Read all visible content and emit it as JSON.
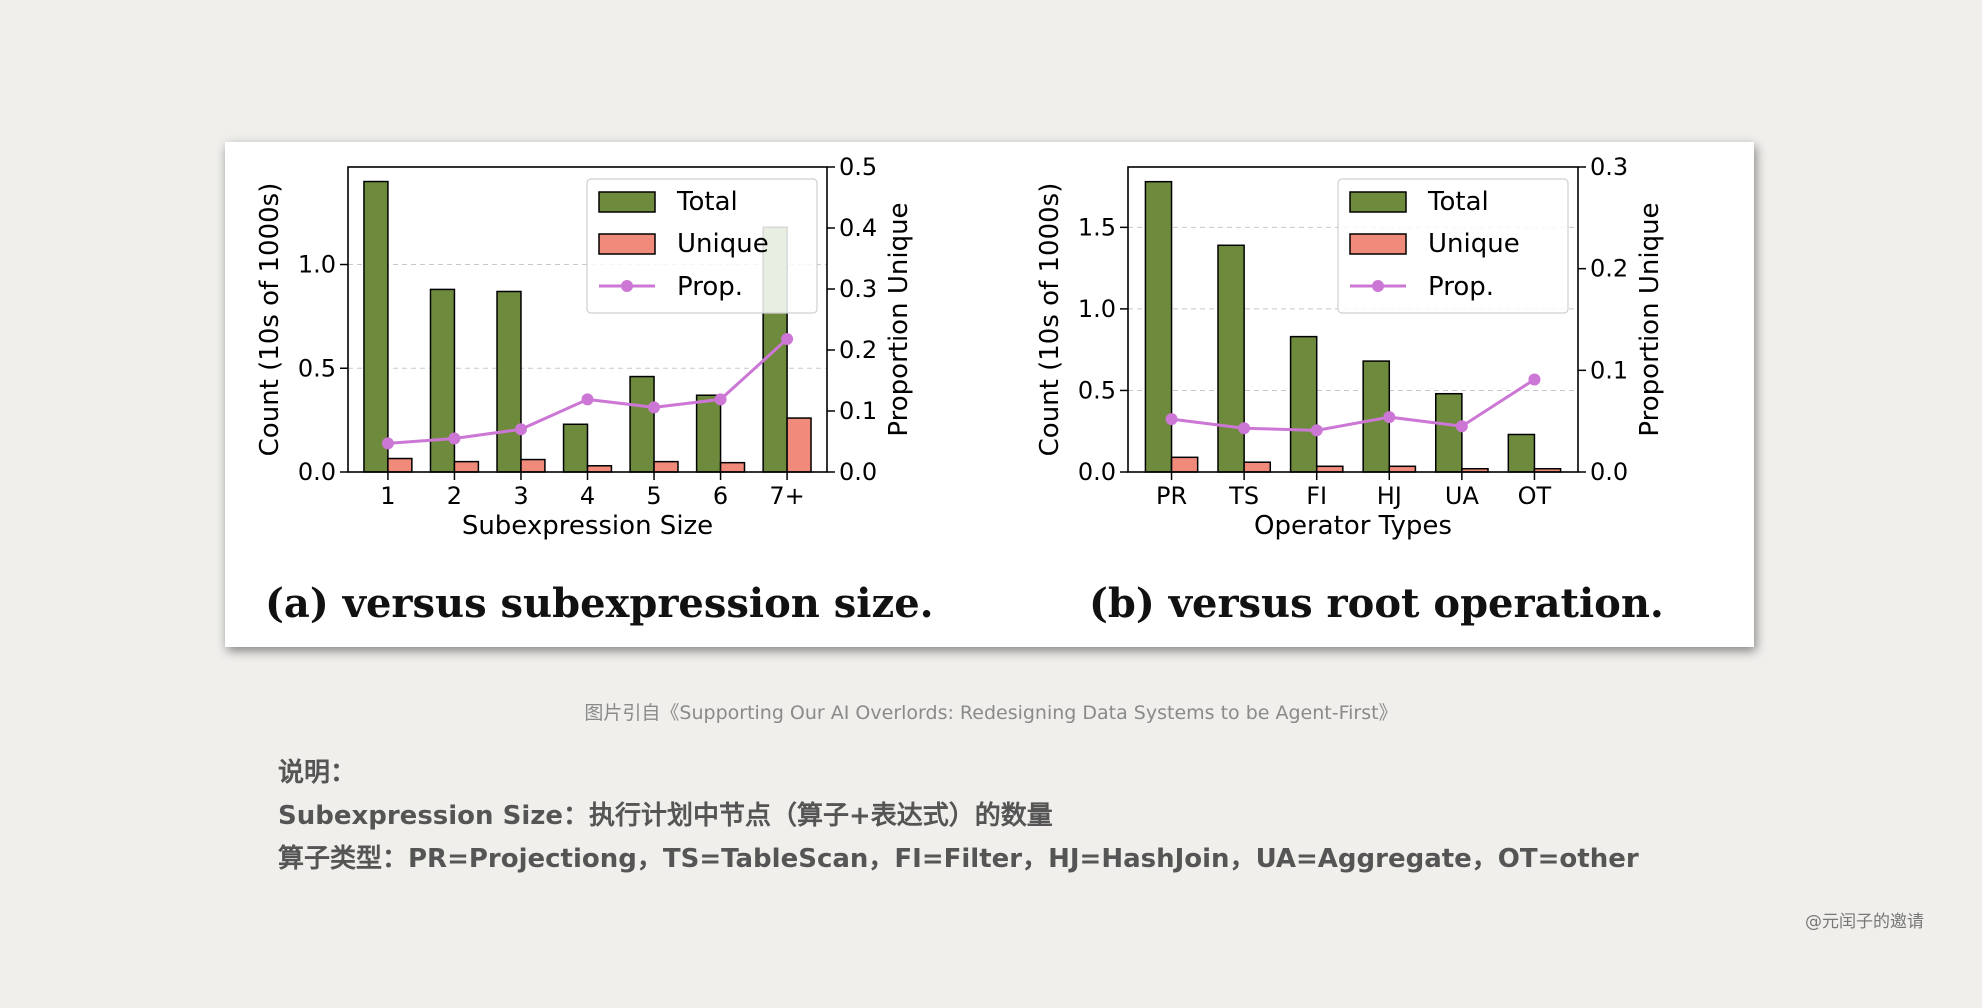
{
  "chart_data": [
    {
      "type": "bar",
      "categories": [
        "1",
        "2",
        "3",
        "4",
        "5",
        "6",
        "7+"
      ],
      "series": [
        {
          "name": "Total",
          "axis": "left",
          "values": [
            1.4,
            0.88,
            0.87,
            0.23,
            0.46,
            0.37,
            1.18
          ]
        },
        {
          "name": "Unique",
          "axis": "left",
          "values": [
            0.065,
            0.05,
            0.06,
            0.03,
            0.05,
            0.045,
            0.26
          ]
        },
        {
          "name": "Prop.",
          "axis": "right",
          "type": "line",
          "values": [
            0.047,
            0.055,
            0.07,
            0.119,
            0.106,
            0.119,
            0.218
          ]
        }
      ],
      "xlabel": "Subexpression Size",
      "ylabel": "Count (10s of 1000s)",
      "y2label": "Proportion Unique",
      "ylim": [
        0,
        1.47
      ],
      "y2lim": [
        0,
        0.5
      ],
      "yticks": [
        "0.0",
        "0.5",
        "1.0"
      ],
      "y2ticks": [
        "0.0",
        "0.1",
        "0.2",
        "0.3",
        "0.4",
        "0.5"
      ],
      "grid": true,
      "legend": "top-right",
      "caption": "(a) versus subexpression size."
    },
    {
      "type": "bar",
      "categories": [
        "PR",
        "TS",
        "FI",
        "HJ",
        "UA",
        "OT"
      ],
      "series": [
        {
          "name": "Total",
          "axis": "left",
          "values": [
            1.78,
            1.39,
            0.83,
            0.68,
            0.48,
            0.23
          ]
        },
        {
          "name": "Unique",
          "axis": "left",
          "values": [
            0.09,
            0.06,
            0.035,
            0.035,
            0.02,
            0.02
          ]
        },
        {
          "name": "Prop.",
          "axis": "right",
          "type": "line",
          "values": [
            0.052,
            0.043,
            0.041,
            0.054,
            0.045,
            0.091
          ]
        }
      ],
      "xlabel": "Operator Types",
      "ylabel": "Count (10s of 1000s)",
      "y2label": "Proportion Unique",
      "ylim": [
        0,
        1.87
      ],
      "y2lim": [
        0,
        0.3
      ],
      "yticks": [
        "0.0",
        "0.5",
        "1.0",
        "1.5"
      ],
      "y2ticks": [
        "0.0",
        "0.1",
        "0.2",
        "0.3"
      ],
      "grid": true,
      "legend": "top-right",
      "caption": "(b) versus root operation."
    }
  ],
  "colors": {
    "total": "#6e8b3d",
    "unique": "#f08a7b",
    "prop": "#cc77d5"
  },
  "source_text": "图片引自《Supporting Our AI Overlords: Redesigning Data Systems to be Agent-First》",
  "notes": {
    "line1": "说明：",
    "line2": "Subexpression Size：执行计划中节点（算子+表达式）的数量",
    "line3": "算子类型：PR=Projectiong，TS=TableScan，FI=Filter，HJ=HashJoin，UA=Aggregate，OT=other"
  },
  "watermark": "@元闰子的邀请"
}
